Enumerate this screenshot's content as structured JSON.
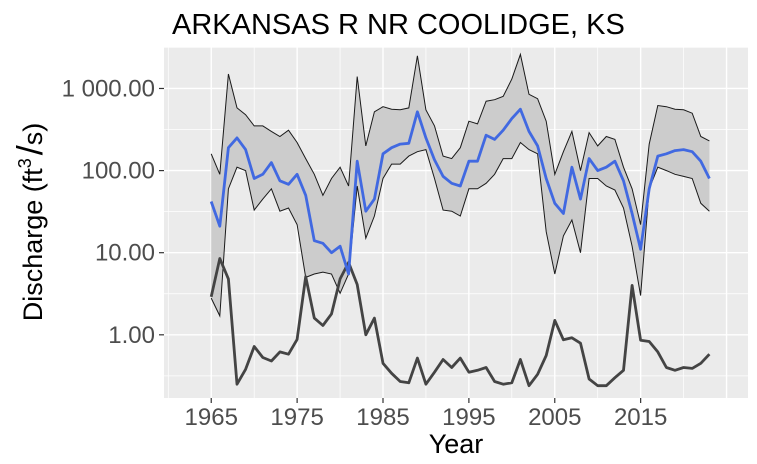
{
  "chart_data": {
    "type": "line",
    "title": "ARKANSAS R NR COOLIDGE, KS",
    "xlabel": "Year",
    "ylabel": "Discharge",
    "ylabel_unit": {
      "open": " (",
      "base": "ft",
      "sup": "3",
      "slash": "/",
      "rest": "s)"
    },
    "y_scale": "log10",
    "xlim": [
      1959.5,
      2027.5
    ],
    "ylim": [
      0.17,
      3200
    ],
    "x_ticks": [
      1965,
      1975,
      1985,
      1995,
      2005,
      2015
    ],
    "x_tick_labels": [
      "1965",
      "1975",
      "1985",
      "1995",
      "2005",
      "2015"
    ],
    "y_ticks": [
      1,
      10,
      100,
      1000
    ],
    "y_tick_labels": [
      "1.00",
      "10.00",
      "100.00",
      "1 000.00"
    ],
    "grid": true,
    "colors": {
      "panel": "#ebebeb",
      "grid": "#ffffff",
      "band_fill": "#cccccc",
      "band_edge": "#1a1a1a",
      "median_line": "#4169e1",
      "low_line": "#444444"
    },
    "x": [
      1965,
      1966,
      1967,
      1968,
      1969,
      1970,
      1971,
      1972,
      1973,
      1974,
      1975,
      1976,
      1977,
      1978,
      1979,
      1980,
      1981,
      1982,
      1983,
      1984,
      1985,
      1986,
      1987,
      1988,
      1989,
      1990,
      1991,
      1992,
      1993,
      1994,
      1995,
      1996,
      1997,
      1998,
      1999,
      2000,
      2001,
      2002,
      2003,
      2004,
      2005,
      2006,
      2007,
      2008,
      2009,
      2010,
      2011,
      2012,
      2013,
      2014,
      2015,
      2016,
      2017,
      2018,
      2019,
      2020,
      2021,
      2022,
      2023
    ],
    "series": [
      {
        "role": "median",
        "values": [
          42,
          21,
          190,
          250,
          180,
          80,
          90,
          125,
          75,
          68,
          90,
          50,
          14,
          13,
          10,
          12,
          5.5,
          130,
          32,
          45,
          160,
          190,
          210,
          215,
          520,
          250,
          135,
          85,
          70,
          65,
          130,
          130,
          270,
          240,
          310,
          430,
          560,
          300,
          200,
          80,
          40,
          30,
          110,
          45,
          140,
          100,
          110,
          130,
          75,
          30,
          11,
          60,
          150,
          160,
          175,
          180,
          170,
          130,
          80
        ]
      },
      {
        "role": "band_upper",
        "values": [
          160,
          90,
          1500,
          580,
          480,
          350,
          350,
          300,
          260,
          310,
          220,
          140,
          90,
          50,
          80,
          110,
          65,
          1400,
          200,
          520,
          600,
          560,
          550,
          580,
          2500,
          550,
          350,
          150,
          140,
          190,
          400,
          370,
          700,
          730,
          800,
          1300,
          2600,
          850,
          750,
          400,
          90,
          170,
          300,
          100,
          290,
          200,
          260,
          240,
          110,
          60,
          22,
          210,
          620,
          600,
          560,
          550,
          500,
          260,
          230
        ]
      },
      {
        "role": "band_lower",
        "values": [
          2.8,
          1.7,
          60,
          110,
          100,
          33,
          45,
          60,
          32,
          35,
          22,
          5,
          5.5,
          5.8,
          5.5,
          3.2,
          5.5,
          65,
          15,
          28,
          80,
          120,
          120,
          150,
          170,
          180,
          80,
          33,
          32,
          28,
          60,
          60,
          70,
          90,
          140,
          140,
          220,
          180,
          160,
          18,
          5.5,
          16,
          25,
          10,
          80,
          80,
          65,
          58,
          35,
          12,
          3,
          60,
          110,
          100,
          90,
          85,
          80,
          40,
          32
        ]
      },
      {
        "role": "low",
        "values": [
          2.9,
          8.5,
          4.8,
          0.25,
          0.38,
          0.72,
          0.53,
          0.48,
          0.62,
          0.58,
          0.88,
          5.1,
          1.6,
          1.3,
          1.8,
          4.8,
          7.6,
          4.1,
          1.0,
          1.6,
          0.45,
          0.34,
          0.27,
          0.26,
          0.52,
          0.25,
          0.35,
          0.5,
          0.4,
          0.52,
          0.35,
          0.37,
          0.4,
          0.27,
          0.25,
          0.26,
          0.5,
          0.24,
          0.33,
          0.56,
          1.5,
          0.87,
          0.92,
          0.79,
          0.29,
          0.24,
          0.24,
          0.3,
          0.37,
          4.0,
          0.86,
          0.83,
          0.62,
          0.4,
          0.37,
          0.4,
          0.39,
          0.45,
          0.58
        ]
      }
    ]
  }
}
